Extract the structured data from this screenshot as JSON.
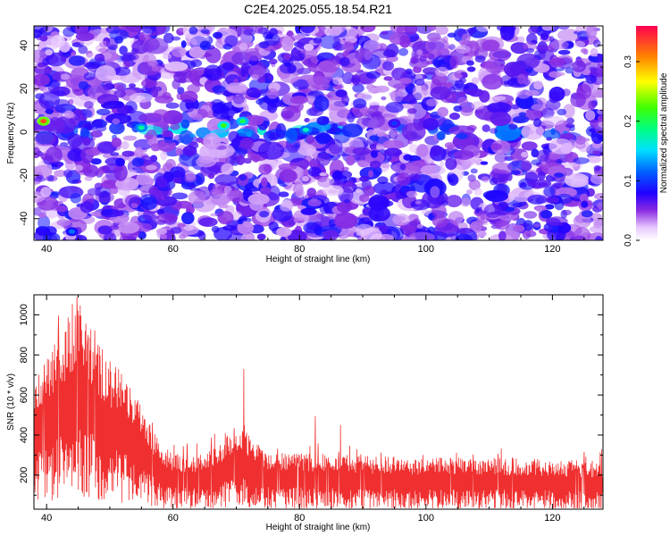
{
  "title": "C2E4.2025.055.18.54.R21",
  "colors": {
    "snr_line": "#f03030",
    "spectrogram_background": "#ffffff",
    "dominant_fill": "#8a2be2"
  },
  "chart_data": [
    {
      "type": "heatmap",
      "xlabel": "Height of straight line (km)",
      "ylabel": "Frequency (Hz)",
      "xlim": [
        38,
        128
      ],
      "ylim": [
        -50,
        49
      ],
      "x_ticks": [
        40,
        60,
        80,
        100,
        120
      ],
      "y_ticks": [
        40,
        20,
        0,
        -20,
        -40
      ],
      "colorbar": {
        "label": "Normalized spectral amplitude",
        "range": [
          0,
          0.36
        ],
        "ticks": [
          0.0,
          0.1,
          0.2,
          0.3
        ],
        "colormap": "rainbow"
      },
      "band_center_hz": 0,
      "hotspots": [
        {
          "x": 39.5,
          "y": 5,
          "value": 0.33
        },
        {
          "x": 55,
          "y": 2,
          "value": 0.18
        },
        {
          "x": 68,
          "y": 3,
          "value": 0.22
        },
        {
          "x": 71,
          "y": 5,
          "value": 0.2
        },
        {
          "x": 81,
          "y": 1,
          "value": 0.17
        },
        {
          "x": 44,
          "y": -46,
          "value": 0.12
        },
        {
          "x": 95,
          "y": 4,
          "value": 0.1
        }
      ]
    },
    {
      "type": "line",
      "xlabel": "Height of straight line (km)",
      "ylabel": "SNR (10 * v/v)",
      "xlim": [
        38,
        128
      ],
      "ylim": [
        30,
        1100
      ],
      "x_ticks": [
        40,
        60,
        80,
        100,
        120
      ],
      "y_ticks": [
        200,
        400,
        600,
        800,
        1000
      ],
      "series": [
        {
          "envelope_x": [
            38,
            40,
            42,
            44,
            45,
            46,
            48,
            50,
            52,
            54,
            56,
            58,
            60,
            65,
            70,
            72,
            75,
            80,
            85,
            90,
            100,
            110,
            120,
            128
          ],
          "envelope_mean": [
            370,
            430,
            500,
            550,
            600,
            560,
            480,
            430,
            400,
            350,
            270,
            200,
            170,
            175,
            240,
            230,
            180,
            175,
            170,
            165,
            160,
            160,
            155,
            150
          ],
          "peak_points": [
            {
              "x": 41.8,
              "y": 880
            },
            {
              "x": 44.8,
              "y": 1090
            },
            {
              "x": 46.5,
              "y": 870
            },
            {
              "x": 50.8,
              "y": 710
            },
            {
              "x": 71.2,
              "y": 730
            },
            {
              "x": 82.5,
              "y": 495
            },
            {
              "x": 86.5,
              "y": 450
            },
            {
              "x": 127.8,
              "y": 330
            }
          ]
        }
      ]
    }
  ]
}
